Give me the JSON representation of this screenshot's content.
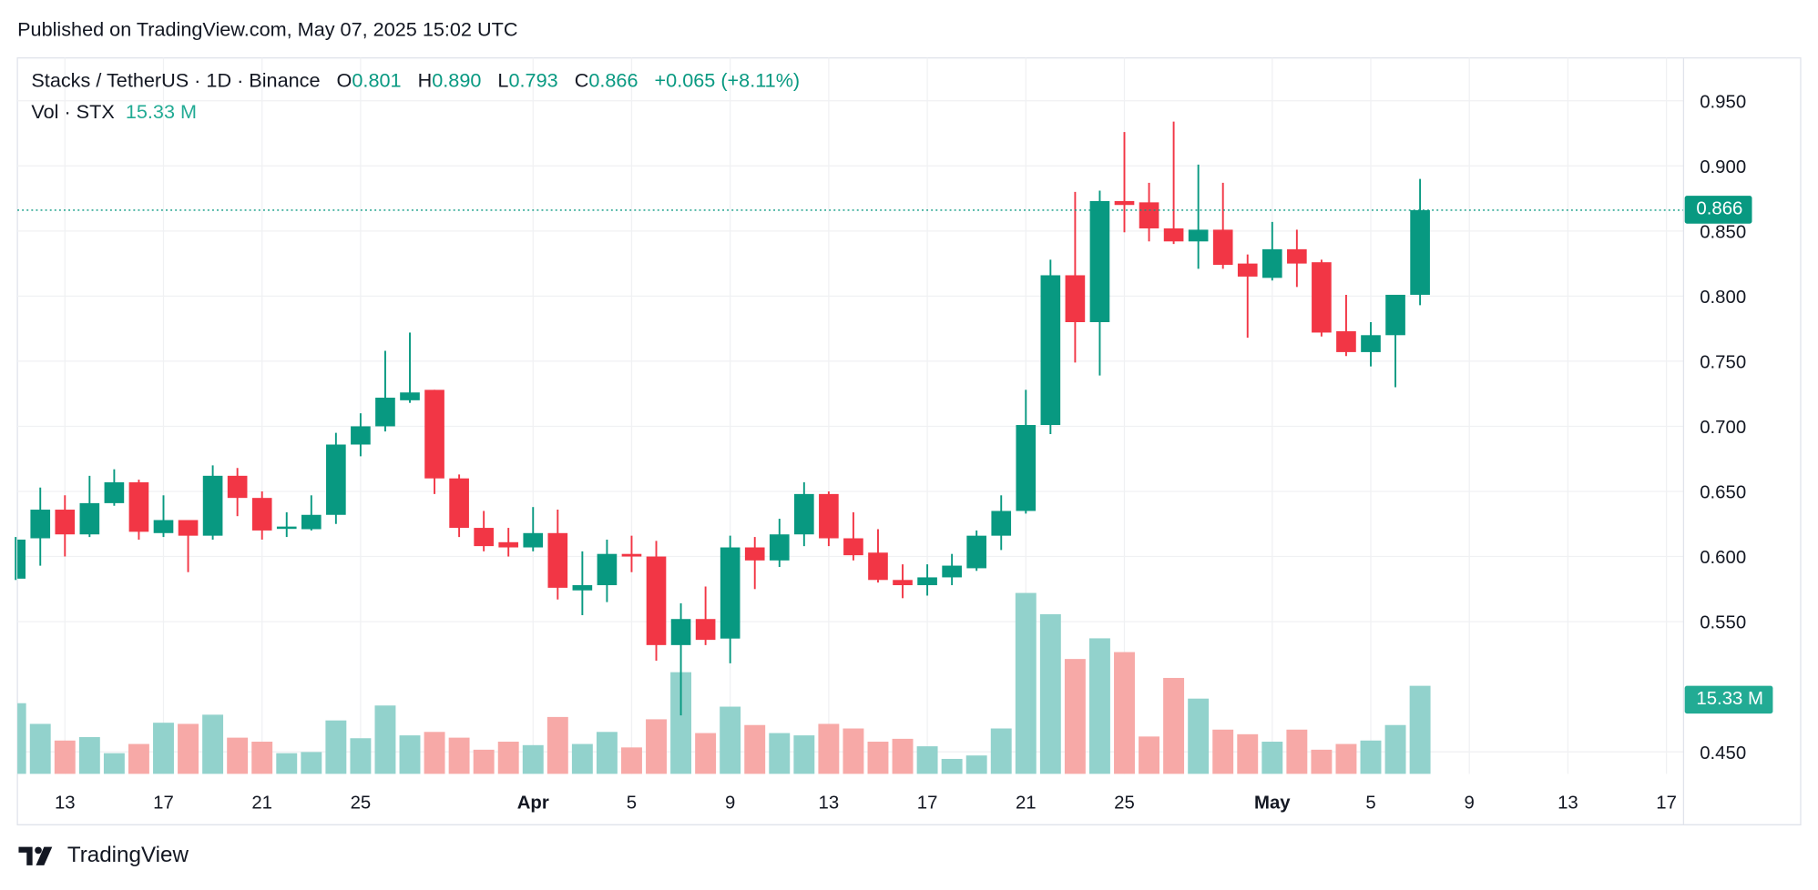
{
  "header": {
    "published": "Published on TradingView.com, May 07, 2025 15:02 UTC"
  },
  "legend": {
    "symbol": "Stacks / TetherUS · 1D · Binance",
    "o_label": "O",
    "o": "0.801",
    "h_label": "H",
    "h": "0.890",
    "l_label": "L",
    "l": "0.793",
    "c_label": "C",
    "c": "0.866",
    "change": "+0.065 (+8.11%)",
    "vol_label": "Vol · STX",
    "vol": "15.33 M"
  },
  "price_tag": "0.866",
  "volume_tag": "15.33 M",
  "footer": {
    "brand": "TradingView"
  },
  "colors": {
    "up": "#089981",
    "down": "#f23645",
    "up_volume": "#92d2cc",
    "down_volume": "#f7a9a7",
    "tag": "#089981",
    "volume_tag": "#22ab94"
  },
  "chart_data": {
    "type": "candlestick",
    "grid": true,
    "price_axis": {
      "ticks": [
        "0.950",
        "0.900",
        "0.850",
        "0.800",
        "0.750",
        "0.700",
        "0.650",
        "0.600",
        "0.550",
        "0.450"
      ],
      "range": [
        0.43,
        0.97
      ]
    },
    "time_axis": {
      "ticks": [
        {
          "label": "13",
          "date": "2025-03-13"
        },
        {
          "label": "17",
          "date": "2025-03-17"
        },
        {
          "label": "21",
          "date": "2025-03-21"
        },
        {
          "label": "25",
          "date": "2025-03-25"
        },
        {
          "label": "Apr",
          "date": "2025-04-01",
          "bold": true
        },
        {
          "label": "5",
          "date": "2025-04-05"
        },
        {
          "label": "9",
          "date": "2025-04-09"
        },
        {
          "label": "13",
          "date": "2025-04-13"
        },
        {
          "label": "17",
          "date": "2025-04-17"
        },
        {
          "label": "21",
          "date": "2025-04-21"
        },
        {
          "label": "25",
          "date": "2025-04-25"
        },
        {
          "label": "May",
          "date": "2025-05-01",
          "bold": true
        },
        {
          "label": "5",
          "date": "2025-05-05"
        },
        {
          "label": "9",
          "date": "2025-05-09"
        },
        {
          "label": "13",
          "date": "2025-05-13"
        },
        {
          "label": "17",
          "date": "2025-05-17"
        }
      ]
    },
    "dates": [
      "2025-03-11",
      "2025-03-12",
      "2025-03-13",
      "2025-03-14",
      "2025-03-15",
      "2025-03-16",
      "2025-03-17",
      "2025-03-18",
      "2025-03-19",
      "2025-03-20",
      "2025-03-21",
      "2025-03-22",
      "2025-03-23",
      "2025-03-24",
      "2025-03-25",
      "2025-03-26",
      "2025-03-27",
      "2025-03-28",
      "2025-03-29",
      "2025-03-30",
      "2025-03-31",
      "2025-04-01",
      "2025-04-02",
      "2025-04-03",
      "2025-04-04",
      "2025-04-05",
      "2025-04-06",
      "2025-04-07",
      "2025-04-08",
      "2025-04-09",
      "2025-04-10",
      "2025-04-11",
      "2025-04-12",
      "2025-04-13",
      "2025-04-14",
      "2025-04-15",
      "2025-04-16",
      "2025-04-17",
      "2025-04-18",
      "2025-04-19",
      "2025-04-20",
      "2025-04-21",
      "2025-04-22",
      "2025-04-23",
      "2025-04-24",
      "2025-04-25",
      "2025-04-26",
      "2025-04-27",
      "2025-04-28",
      "2025-04-29",
      "2025-04-30",
      "2025-05-01",
      "2025-05-02",
      "2025-05-03",
      "2025-05-04",
      "2025-05-05",
      "2025-05-06",
      "2025-05-07"
    ],
    "ohlc": [
      [
        0.583,
        0.615,
        0.582,
        0.613
      ],
      [
        0.614,
        0.653,
        0.593,
        0.636
      ],
      [
        0.636,
        0.647,
        0.6,
        0.617
      ],
      [
        0.617,
        0.662,
        0.615,
        0.641
      ],
      [
        0.641,
        0.667,
        0.639,
        0.657
      ],
      [
        0.657,
        0.659,
        0.613,
        0.619
      ],
      [
        0.618,
        0.647,
        0.615,
        0.628
      ],
      [
        0.628,
        0.628,
        0.588,
        0.616
      ],
      [
        0.616,
        0.67,
        0.613,
        0.662
      ],
      [
        0.662,
        0.668,
        0.631,
        0.645
      ],
      [
        0.645,
        0.65,
        0.613,
        0.62
      ],
      [
        0.622,
        0.634,
        0.615,
        0.623
      ],
      [
        0.621,
        0.647,
        0.62,
        0.632
      ],
      [
        0.632,
        0.695,
        0.625,
        0.686
      ],
      [
        0.686,
        0.71,
        0.677,
        0.7
      ],
      [
        0.7,
        0.758,
        0.696,
        0.722
      ],
      [
        0.72,
        0.772,
        0.718,
        0.726
      ],
      [
        0.728,
        0.728,
        0.648,
        0.66
      ],
      [
        0.66,
        0.663,
        0.615,
        0.622
      ],
      [
        0.622,
        0.635,
        0.604,
        0.608
      ],
      [
        0.611,
        0.622,
        0.6,
        0.607
      ],
      [
        0.607,
        0.638,
        0.604,
        0.618
      ],
      [
        0.618,
        0.636,
        0.567,
        0.576
      ],
      [
        0.574,
        0.604,
        0.555,
        0.578
      ],
      [
        0.578,
        0.613,
        0.565,
        0.602
      ],
      [
        0.602,
        0.616,
        0.588,
        0.6
      ],
      [
        0.6,
        0.612,
        0.52,
        0.532
      ],
      [
        0.532,
        0.564,
        0.478,
        0.552
      ],
      [
        0.552,
        0.577,
        0.532,
        0.536
      ],
      [
        0.537,
        0.616,
        0.518,
        0.607
      ],
      [
        0.607,
        0.615,
        0.575,
        0.597
      ],
      [
        0.597,
        0.629,
        0.592,
        0.617
      ],
      [
        0.617,
        0.657,
        0.608,
        0.648
      ],
      [
        0.648,
        0.65,
        0.608,
        0.614
      ],
      [
        0.614,
        0.634,
        0.597,
        0.601
      ],
      [
        0.603,
        0.621,
        0.58,
        0.582
      ],
      [
        0.582,
        0.594,
        0.568,
        0.578
      ],
      [
        0.578,
        0.594,
        0.57,
        0.584
      ],
      [
        0.584,
        0.602,
        0.578,
        0.593
      ],
      [
        0.591,
        0.62,
        0.589,
        0.616
      ],
      [
        0.616,
        0.647,
        0.605,
        0.635
      ],
      [
        0.635,
        0.728,
        0.633,
        0.701
      ],
      [
        0.701,
        0.828,
        0.694,
        0.816
      ],
      [
        0.816,
        0.88,
        0.749,
        0.78
      ],
      [
        0.78,
        0.881,
        0.739,
        0.873
      ],
      [
        0.873,
        0.926,
        0.849,
        0.87
      ],
      [
        0.872,
        0.887,
        0.842,
        0.852
      ],
      [
        0.852,
        0.934,
        0.84,
        0.842
      ],
      [
        0.842,
        0.901,
        0.821,
        0.851
      ],
      [
        0.851,
        0.887,
        0.821,
        0.824
      ],
      [
        0.825,
        0.832,
        0.768,
        0.815
      ],
      [
        0.814,
        0.857,
        0.812,
        0.836
      ],
      [
        0.836,
        0.851,
        0.807,
        0.825
      ],
      [
        0.826,
        0.828,
        0.769,
        0.772
      ],
      [
        0.773,
        0.801,
        0.754,
        0.757
      ],
      [
        0.757,
        0.78,
        0.746,
        0.77
      ],
      [
        0.77,
        0.801,
        0.73,
        0.801
      ],
      [
        0.801,
        0.89,
        0.793,
        0.866
      ]
    ],
    "volume_millions": [
      12.3,
      8.7,
      5.8,
      6.4,
      3.6,
      5.2,
      8.9,
      8.7,
      10.3,
      6.3,
      5.6,
      3.6,
      3.8,
      9.3,
      6.2,
      11.9,
      6.7,
      7.3,
      6.3,
      4.2,
      5.6,
      5.0,
      9.9,
      5.2,
      7.3,
      4.6,
      9.5,
      17.7,
      7.1,
      11.7,
      8.5,
      7.1,
      6.7,
      8.7,
      7.9,
      5.6,
      6.1,
      4.8,
      2.6,
      3.2,
      7.9,
      31.5,
      27.8,
      20.0,
      23.6,
      21.2,
      6.5,
      16.7,
      13.1,
      7.7,
      6.9,
      5.6,
      7.7,
      4.2,
      5.2,
      5.8,
      8.5,
      15.33
    ],
    "last_price": 0.866
  }
}
